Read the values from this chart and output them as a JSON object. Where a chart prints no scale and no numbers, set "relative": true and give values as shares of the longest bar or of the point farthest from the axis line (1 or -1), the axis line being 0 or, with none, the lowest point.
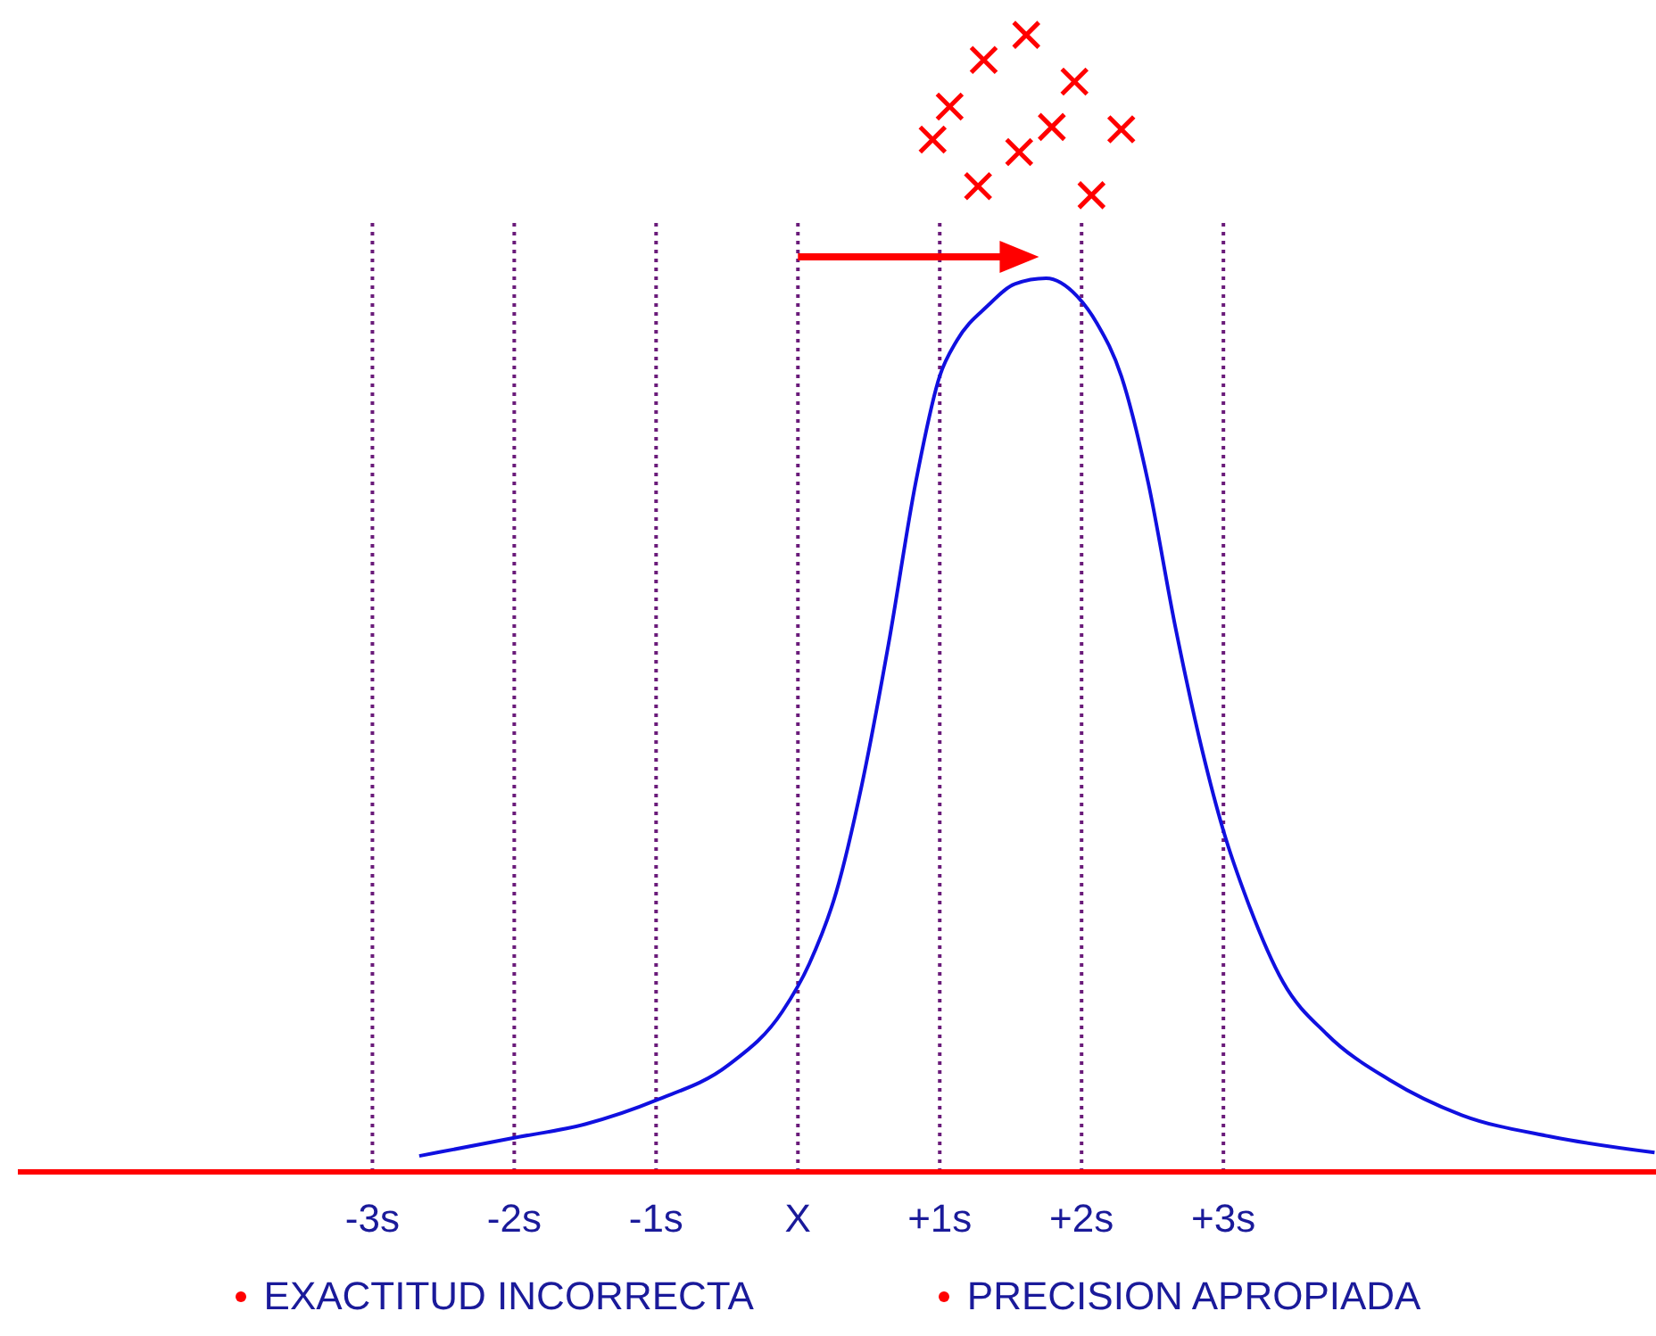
{
  "chart_data": {
    "type": "line",
    "relative": true,
    "grid": false,
    "legend": false,
    "xlim": [
      -5.5,
      6.05
    ],
    "xticks": [
      {
        "value": -3,
        "label": "-3s"
      },
      {
        "value": -2,
        "label": "-2s"
      },
      {
        "value": -1,
        "label": "-1s"
      },
      {
        "value": 0,
        "label": "X"
      },
      {
        "value": 1,
        "label": "+1s"
      },
      {
        "value": 2,
        "label": "+2s"
      },
      {
        "value": 3,
        "label": "+3s"
      }
    ],
    "series": [
      {
        "color": "#1010e0",
        "line_style": "solid",
        "x": [
          -2.67,
          -2.0,
          -1.5,
          -1.0,
          -0.49,
          -0.11,
          0.08,
          0.27,
          0.45,
          0.64,
          0.83,
          1.0,
          1.12,
          1.34,
          1.53,
          1.75,
          1.97,
          2.11,
          2.28,
          2.47,
          2.66,
          2.85,
          3.0,
          3.17,
          3.42,
          3.73,
          4.17,
          4.68,
          5.31,
          6.04
        ],
        "values": [
          0.014,
          0.03,
          0.042,
          0.063,
          0.094,
          0.141,
          0.183,
          0.246,
          0.34,
          0.465,
          0.606,
          0.7,
          0.731,
          0.762,
          0.781,
          0.786,
          0.77,
          0.746,
          0.7,
          0.606,
          0.48,
          0.371,
          0.3,
          0.238,
          0.167,
          0.121,
          0.081,
          0.05,
          0.031,
          0.017
        ]
      },
      {
        "type": "scatter",
        "color": "#ff0000",
        "marker": "cross",
        "x": [
          1.31,
          1.61,
          1.07,
          1.95,
          0.95,
          1.79,
          2.28,
          1.56,
          1.27,
          2.07
        ],
        "values": [
          0.978,
          1.0,
          0.937,
          0.959,
          0.908,
          0.919,
          0.917,
          0.897,
          0.867,
          0.859
        ]
      }
    ],
    "ref_lines": [
      {
        "axis": "x",
        "value": -3,
        "color": "#6a1b7a",
        "line_style": "dotted"
      },
      {
        "axis": "x",
        "value": -2,
        "color": "#6a1b7a",
        "line_style": "dotted"
      },
      {
        "axis": "x",
        "value": -1,
        "color": "#6a1b7a",
        "line_style": "dotted"
      },
      {
        "axis": "x",
        "value": 0,
        "color": "#6a1b7a",
        "line_style": "dotted"
      },
      {
        "axis": "x",
        "value": 1,
        "color": "#6a1b7a",
        "line_style": "dotted"
      },
      {
        "axis": "x",
        "value": 2,
        "color": "#6a1b7a",
        "line_style": "dotted"
      },
      {
        "axis": "x",
        "value": 3,
        "color": "#6a1b7a",
        "line_style": "dotted"
      }
    ],
    "annotations": [
      "EXACTITUD INCORRECTA",
      "PRECISION APROPIADA"
    ]
  }
}
